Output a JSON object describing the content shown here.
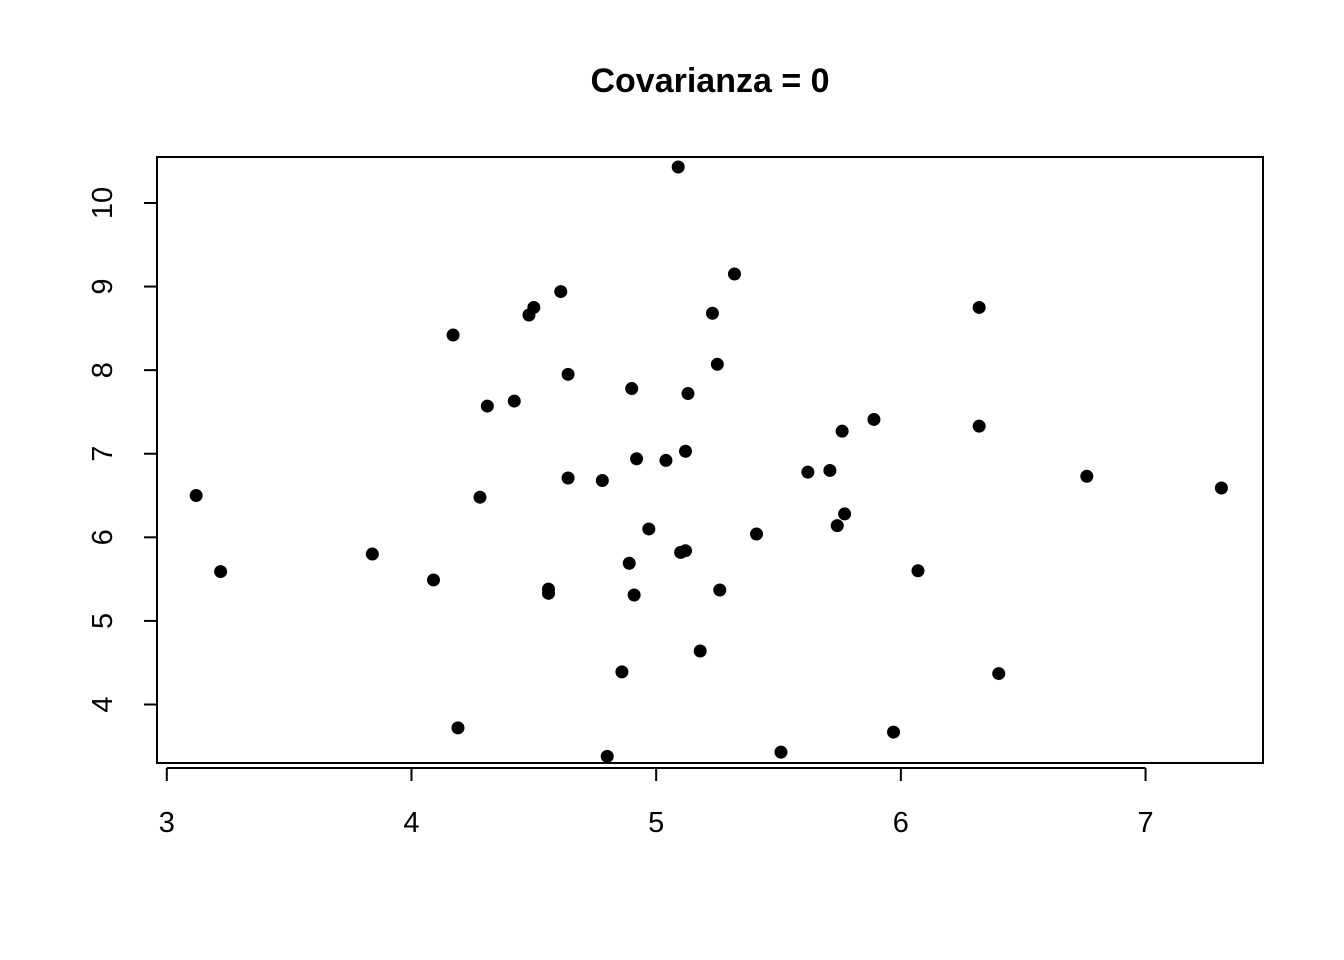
{
  "chart_data": {
    "type": "scatter",
    "title": "Covarianza = 0",
    "xlabel": "",
    "ylabel": "",
    "xlim": [
      2.96,
      7.48
    ],
    "ylim": [
      3.3,
      10.55
    ],
    "x_ticks": [
      3,
      4,
      5,
      6,
      7
    ],
    "y_ticks": [
      4,
      5,
      6,
      7,
      8,
      9,
      10
    ],
    "grid": false,
    "legend": "none",
    "marker_color": "#000000",
    "points": [
      {
        "x": 3.12,
        "y": 6.5
      },
      {
        "x": 3.22,
        "y": 5.59
      },
      {
        "x": 3.84,
        "y": 5.8
      },
      {
        "x": 4.09,
        "y": 5.49
      },
      {
        "x": 4.17,
        "y": 8.42
      },
      {
        "x": 4.19,
        "y": 3.72
      },
      {
        "x": 4.28,
        "y": 6.48
      },
      {
        "x": 4.31,
        "y": 7.57
      },
      {
        "x": 4.42,
        "y": 7.63
      },
      {
        "x": 4.48,
        "y": 8.66
      },
      {
        "x": 4.5,
        "y": 8.75
      },
      {
        "x": 4.56,
        "y": 5.38
      },
      {
        "x": 4.56,
        "y": 5.33
      },
      {
        "x": 4.61,
        "y": 8.94
      },
      {
        "x": 4.64,
        "y": 7.95
      },
      {
        "x": 4.64,
        "y": 6.71
      },
      {
        "x": 4.78,
        "y": 6.68
      },
      {
        "x": 4.8,
        "y": 3.38
      },
      {
        "x": 4.86,
        "y": 4.39
      },
      {
        "x": 4.89,
        "y": 5.69
      },
      {
        "x": 4.9,
        "y": 7.78
      },
      {
        "x": 4.91,
        "y": 5.31
      },
      {
        "x": 4.92,
        "y": 6.94
      },
      {
        "x": 4.97,
        "y": 6.1
      },
      {
        "x": 5.04,
        "y": 6.92
      },
      {
        "x": 5.09,
        "y": 10.43
      },
      {
        "x": 5.1,
        "y": 5.82
      },
      {
        "x": 5.12,
        "y": 5.84
      },
      {
        "x": 5.12,
        "y": 7.03
      },
      {
        "x": 5.13,
        "y": 7.72
      },
      {
        "x": 5.18,
        "y": 4.64
      },
      {
        "x": 5.23,
        "y": 8.68
      },
      {
        "x": 5.25,
        "y": 8.07
      },
      {
        "x": 5.26,
        "y": 5.37
      },
      {
        "x": 5.32,
        "y": 9.15
      },
      {
        "x": 5.41,
        "y": 6.04
      },
      {
        "x": 5.51,
        "y": 3.43
      },
      {
        "x": 5.62,
        "y": 6.78
      },
      {
        "x": 5.71,
        "y": 6.8
      },
      {
        "x": 5.74,
        "y": 6.14
      },
      {
        "x": 5.76,
        "y": 7.27
      },
      {
        "x": 5.77,
        "y": 6.28
      },
      {
        "x": 5.89,
        "y": 7.41
      },
      {
        "x": 5.97,
        "y": 3.67
      },
      {
        "x": 6.07,
        "y": 5.6
      },
      {
        "x": 6.32,
        "y": 8.75
      },
      {
        "x": 6.32,
        "y": 7.33
      },
      {
        "x": 6.4,
        "y": 4.37
      },
      {
        "x": 6.76,
        "y": 6.73
      },
      {
        "x": 7.31,
        "y": 6.59
      }
    ]
  }
}
